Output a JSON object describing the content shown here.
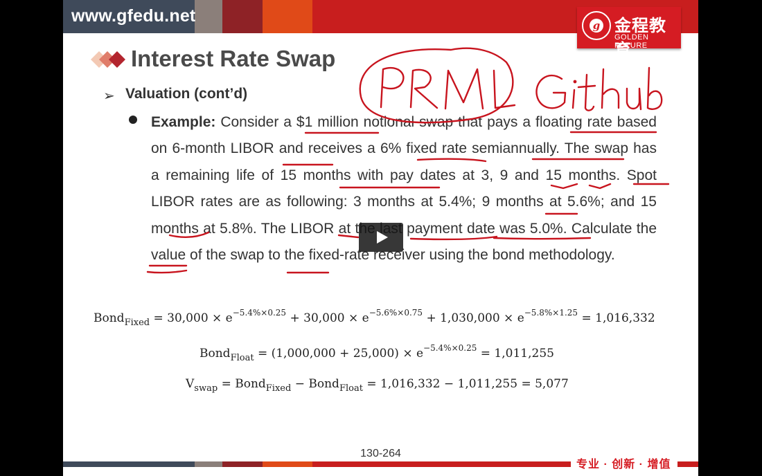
{
  "header": {
    "site_url": "www.gfedu.net",
    "logo_cn": "金程教育",
    "logo_en": "GOLDEN FUTURE",
    "logo_letter": "g"
  },
  "slide": {
    "title": "Interest Rate Swap",
    "subheading": "Valuation (cont’d)",
    "example_label": "Example:",
    "example_text": "Consider a $1 million notional swap that pays a floating rate based on 6-month LIBOR and receives a 6% fixed rate semiannually. The swap has a remaining life of 15 months with pay dates at 3, 9 and 15 months. Spot LIBOR rates are as following: 3 months at 5.4%; 9 months at 5.6%; and 15 months at 5.8%. The LIBOR at the last payment date was 5.0%. Calculate the value of the swap to the fixed-rate receiver using the bond methodology.",
    "formulas": {
      "f1": {
        "lhs": "Bond",
        "lhs_sub": "Fixed",
        "t1": "= 30,000 × e",
        "e1": "−5.4%×0.25",
        "t2": " + 30,000 × e",
        "e2": "−5.6%×0.75",
        "t3": " + 1,030,000 × e",
        "e3": "−5.8%×1.25",
        "t4": " = 1,016,332"
      },
      "f2": {
        "lhs": "Bond",
        "lhs_sub": "Float",
        "t1": " = (1,000,000 + 25,000) × e",
        "e1": "−5.4%×0.25",
        "t2": " = 1,011,255"
      },
      "f3": {
        "lhs": "V",
        "lhs_sub": "swap",
        "t1": " = Bond",
        "s1": "Fixed",
        "t2": " − Bond",
        "s2": "Float",
        "t3": " = 1,016,332 − 1,011,255 = 5,077"
      }
    },
    "page_number": "130-264",
    "tagline": "专业 · 创新 · 增值"
  },
  "annotations": {
    "handwritten_note": "PRML Github"
  },
  "colors": {
    "brand_red": "#d51c23",
    "bar_red": "#c81e1e",
    "ink_red": "#c8141e",
    "slate": "#3f4a5a"
  }
}
